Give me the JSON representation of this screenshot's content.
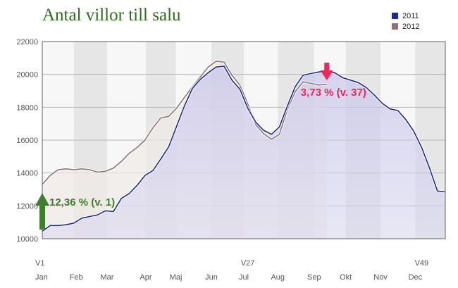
{
  "chart_data": {
    "type": "area",
    "title": "Antal villor till salu",
    "xlabel": "",
    "ylabel": "",
    "ylim": [
      10000,
      22000
    ],
    "yticks": [
      10000,
      12000,
      14000,
      16000,
      18000,
      20000,
      22000
    ],
    "xlim": [
      1,
      52
    ],
    "month_ticks": [
      {
        "label": "Jan",
        "week": 1
      },
      {
        "label": "Feb",
        "week": 5.3
      },
      {
        "label": "Mar",
        "week": 9.2
      },
      {
        "label": "Apr",
        "week": 14.1
      },
      {
        "label": "Maj",
        "week": 17.9
      },
      {
        "label": "Jun",
        "week": 22.4
      },
      {
        "label": "Jul",
        "week": 26.5
      },
      {
        "label": "Aug",
        "week": 30.8
      },
      {
        "label": "Sep",
        "week": 35.4
      },
      {
        "label": "Okt",
        "week": 39.4
      },
      {
        "label": "Nov",
        "week": 43.8
      },
      {
        "label": "Dec",
        "week": 48.2
      }
    ],
    "week_ticks": [
      {
        "label": "V1",
        "week": 1
      },
      {
        "label": "V27",
        "week": 27
      },
      {
        "label": "V49",
        "week": 49
      }
    ],
    "bands": [
      [
        5,
        9.2
      ],
      [
        14.1,
        17.9
      ],
      [
        22.4,
        26.5
      ],
      [
        30.8,
        35.4
      ],
      [
        39.4,
        43.8
      ],
      [
        48.2,
        52
      ]
    ],
    "series": [
      {
        "name": "2011",
        "color": "#1b2a8c",
        "x": [
          1,
          2,
          3,
          4,
          5,
          6,
          7,
          8,
          9,
          10,
          11,
          12,
          13,
          14,
          15,
          16,
          17,
          18,
          19,
          20,
          21,
          22,
          23,
          24,
          25,
          26,
          27,
          28,
          29,
          30,
          31,
          32,
          33,
          34,
          35,
          36,
          37,
          38,
          39,
          40,
          41,
          42,
          43,
          44,
          45,
          46,
          47,
          48,
          49,
          50,
          51,
          52
        ],
        "values": [
          10450,
          10800,
          10800,
          10850,
          10950,
          11250,
          11350,
          11450,
          11700,
          11650,
          12450,
          12750,
          13250,
          13850,
          14150,
          14850,
          15600,
          16850,
          18100,
          19150,
          19700,
          20100,
          20450,
          20500,
          19650,
          19100,
          17950,
          17100,
          16600,
          16350,
          16800,
          18050,
          19250,
          19950,
          20050,
          20150,
          20200,
          20100,
          19800,
          19650,
          19500,
          19200,
          18750,
          18250,
          17900,
          17800,
          17250,
          16550,
          15550,
          14300,
          12900,
          12850
        ]
      },
      {
        "name": "2012",
        "color": "#8a7373",
        "x": [
          1,
          2,
          3,
          4,
          5,
          6,
          7,
          8,
          9,
          10,
          11,
          12,
          13,
          14,
          15,
          16,
          17,
          18,
          19,
          20,
          21,
          22,
          23,
          24,
          25,
          26,
          27,
          28,
          29,
          30,
          31,
          32,
          33,
          34,
          35,
          36,
          37
        ],
        "values": [
          13300,
          13850,
          14200,
          14250,
          14200,
          14250,
          14200,
          14050,
          14100,
          14300,
          14700,
          15200,
          15550,
          16000,
          16750,
          17350,
          17450,
          17950,
          18600,
          19250,
          19850,
          20450,
          20800,
          20750,
          19950,
          19350,
          18200,
          16950,
          16400,
          16050,
          16350,
          17850,
          18950,
          19550,
          19450,
          19350,
          19400
        ]
      }
    ],
    "annotations": [
      {
        "text": "12,36 % (v. 1)",
        "week": 1,
        "value": 12350,
        "marker": "up-arrow",
        "color": "#3d7f2a"
      },
      {
        "text": "3,73 % (v. 37)",
        "week": 37,
        "value": 20200,
        "marker": "down-arrow",
        "color": "#e8275a"
      }
    ],
    "legend_position": "top-right",
    "grid": true
  }
}
